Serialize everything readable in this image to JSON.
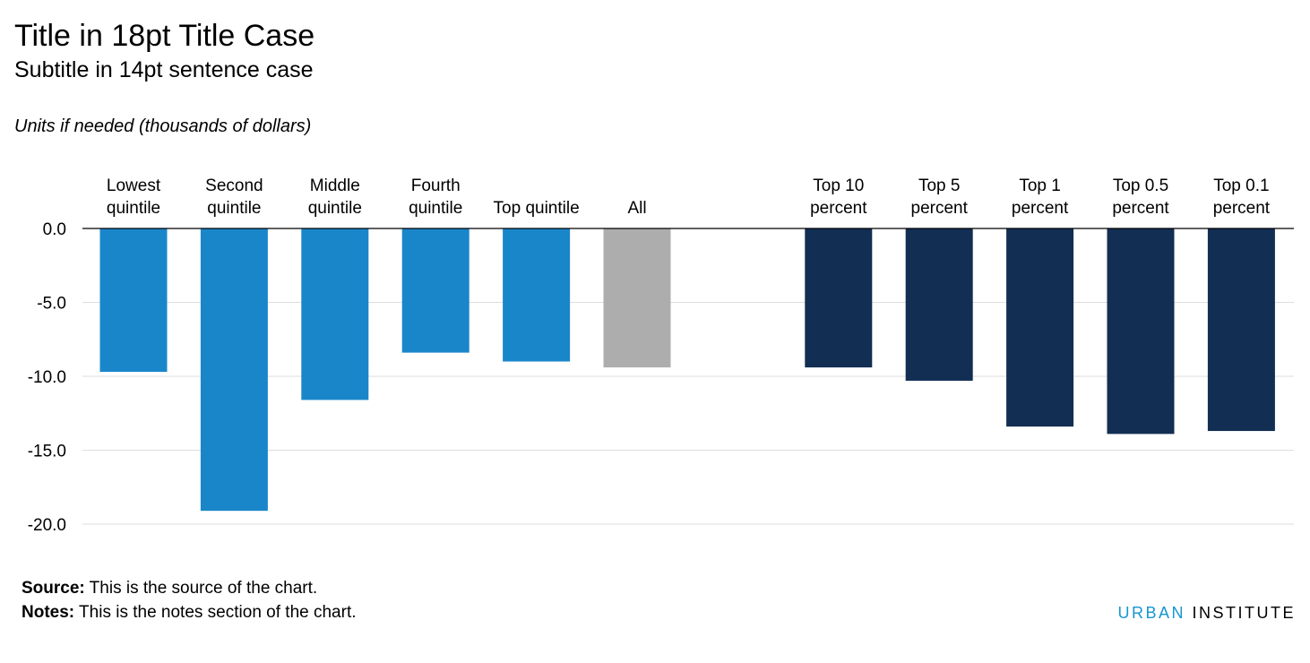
{
  "chart_data": {
    "type": "bar",
    "title": "Title in 18pt Title Case",
    "subtitle": "Subtitle in 14pt sentence case",
    "ylabel": "Units if needed (thousands of dollars)",
    "ylim": [
      -20,
      0
    ],
    "yticks": [
      "0.0",
      "-5.0",
      "-10.0",
      "-15.0",
      "-20.0"
    ],
    "grid": true,
    "categories": [
      [
        "Lowest",
        "quintile"
      ],
      [
        "Second",
        "quintile"
      ],
      [
        "Middle",
        "quintile"
      ],
      [
        "Fourth",
        "quintile"
      ],
      [
        "Top quintile"
      ],
      [
        "All"
      ],
      [
        "Top 10",
        "percent"
      ],
      [
        "Top 5",
        "percent"
      ],
      [
        "Top 1",
        "percent"
      ],
      [
        "Top 0.5",
        "percent"
      ],
      [
        "Top 0.1",
        "percent"
      ]
    ],
    "values": [
      -9.7,
      -19.1,
      -11.6,
      -8.4,
      -9.0,
      -9.4,
      -9.4,
      -10.3,
      -13.4,
      -13.9,
      -13.7
    ],
    "colors": [
      "#1a86ca",
      "#1a86ca",
      "#1a86ca",
      "#1a86ca",
      "#1a86ca",
      "#adadad",
      "#122e53",
      "#122e53",
      "#122e53",
      "#122e53",
      "#122e53"
    ]
  },
  "footer": {
    "source_label": "Source:",
    "source_text": " This is the source of the chart.",
    "notes_label": "Notes:",
    "notes_text": " This is the notes section of the chart."
  },
  "logo": {
    "part1": "URBAN",
    "part2": "INSTITUTE"
  }
}
